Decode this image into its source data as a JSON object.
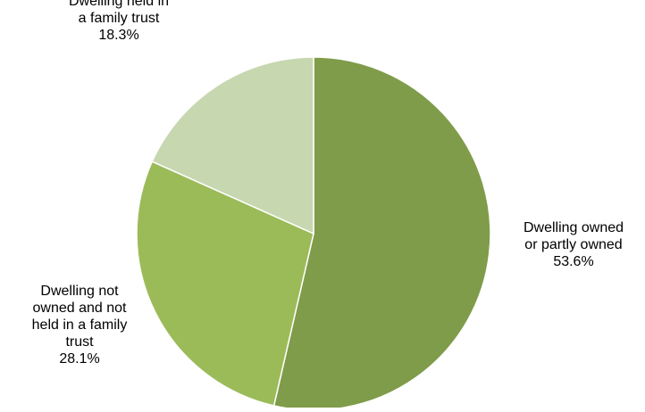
{
  "chart_data": {
    "type": "pie",
    "title": "",
    "start_angle_deg": 0,
    "direction": "clockwise",
    "slice_border_color": "#ffffff",
    "slices": [
      {
        "label_lines": [
          "Dwelling owned",
          "or partly owned"
        ],
        "value_label": "53.6%",
        "value": 53.6,
        "color": "#7f9c4a"
      },
      {
        "label_lines": [
          "Dwelling not",
          "owned and not",
          "held in a family",
          "trust"
        ],
        "value_label": "28.1%",
        "value": 28.1,
        "color": "#9bbb59"
      },
      {
        "label_lines": [
          "Dwelling held in",
          "a family trust"
        ],
        "value_label": "18.3%",
        "value": 18.3,
        "color": "#c7d7b0"
      }
    ]
  }
}
